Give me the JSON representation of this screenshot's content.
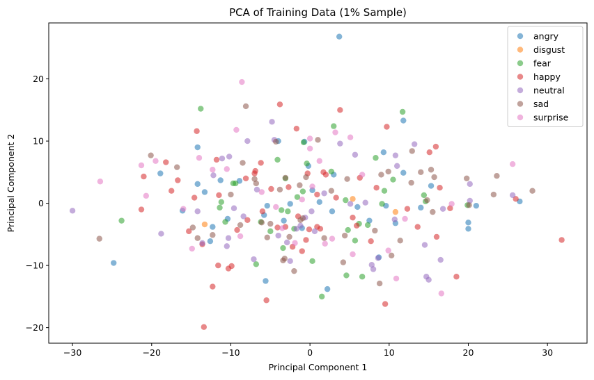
{
  "chart_data": {
    "type": "scatter",
    "title": "PCA of Training Data (1% Sample)",
    "xlabel": "Principal Component 1",
    "ylabel": "Principal Component 2",
    "xlim": [
      -33,
      35
    ],
    "ylim": [
      -22.5,
      29
    ],
    "xticks": [
      -30,
      -20,
      -10,
      0,
      10,
      20,
      30
    ],
    "yticks": [
      -20,
      -10,
      0,
      10,
      20
    ],
    "grid": false,
    "legend_position": "top-right",
    "series": [
      {
        "name": "angry",
        "color": "#1f77b4",
        "points": [
          [
            3.7,
            26.8
          ],
          [
            -14.2,
            9.0
          ],
          [
            -18.9,
            4.8
          ],
          [
            -14.2,
            3.1
          ],
          [
            -11.3,
            3.7
          ],
          [
            -13.3,
            1.8
          ],
          [
            -8.9,
            3.6
          ],
          [
            -10.4,
            -2.5
          ],
          [
            -12.6,
            -6.1
          ],
          [
            -5.4,
            -0.4
          ],
          [
            -2.5,
            -0.1
          ],
          [
            -3.3,
            -2.8
          ],
          [
            -5.6,
            -12.5
          ],
          [
            -4.0,
            10.0
          ],
          [
            -0.7,
            9.9
          ],
          [
            -0.2,
            6.0
          ],
          [
            1.2,
            0.2
          ],
          [
            2.2,
            -13.8
          ],
          [
            0.3,
            2.1
          ],
          [
            7.5,
            -2.8
          ],
          [
            9.3,
            8.2
          ],
          [
            11.8,
            13.3
          ],
          [
            11.8,
            4.9
          ],
          [
            14.0,
            -0.7
          ],
          [
            15.3,
            2.8
          ],
          [
            10.8,
            -3.2
          ],
          [
            8.7,
            -8.7
          ],
          [
            20.0,
            -4.1
          ],
          [
            20.0,
            -3.1
          ],
          [
            21.0,
            -0.4
          ],
          [
            26.5,
            0.3
          ],
          [
            -24.8,
            -9.6
          ],
          [
            -16.1,
            -1.2
          ],
          [
            -12.3,
            -3.8
          ],
          [
            -5.8,
            -1.9
          ],
          [
            2.8,
            -1.3
          ],
          [
            9.6,
            -0.4
          ],
          [
            -1.0,
            -4.0
          ],
          [
            3.0,
            4.6
          ],
          [
            6.0,
            -0.6
          ]
        ]
      },
      {
        "name": "disgust",
        "color": "#ff7f0e",
        "points": [
          [
            -13.3,
            -3.4
          ],
          [
            5.4,
            0.7
          ],
          [
            10.8,
            -1.4
          ]
        ]
      },
      {
        "name": "fear",
        "color": "#2ca02c",
        "points": [
          [
            -13.8,
            15.2
          ],
          [
            -23.8,
            -2.8
          ],
          [
            -11.4,
            -0.7
          ],
          [
            -9.7,
            3.2
          ],
          [
            -9.4,
            3.2
          ],
          [
            -11.2,
            0.2
          ],
          [
            -10.7,
            -3.0
          ],
          [
            -6.8,
            -9.8
          ],
          [
            -5.0,
            -4.5
          ],
          [
            -4.1,
            7.0
          ],
          [
            -3.1,
            4.0
          ],
          [
            -3.6,
            -1.1
          ],
          [
            -3.4,
            -7.2
          ],
          [
            -2.0,
            -4.1
          ],
          [
            -1.6,
            1.0
          ],
          [
            -0.9,
            1.9
          ],
          [
            -0.4,
            6.4
          ],
          [
            0.3,
            -9.3
          ],
          [
            1.5,
            -15.0
          ],
          [
            2.7,
            5.1
          ],
          [
            3.0,
            12.4
          ],
          [
            4.6,
            -11.6
          ],
          [
            4.8,
            -4.3
          ],
          [
            5.7,
            -6.0
          ],
          [
            6.2,
            -3.3
          ],
          [
            6.6,
            -11.8
          ],
          [
            8.3,
            7.3
          ],
          [
            9.4,
            2.0
          ],
          [
            10.5,
            3.8
          ],
          [
            11.7,
            14.7
          ],
          [
            14.4,
            1.3
          ],
          [
            14.6,
            0.3
          ],
          [
            19.9,
            -0.3
          ],
          [
            4.5,
            0.5
          ],
          [
            -6.2,
            -3.0
          ],
          [
            7.3,
            -3.5
          ],
          [
            9.1,
            -0.1
          ],
          [
            -0.8,
            9.8
          ],
          [
            -2.8,
            -1.3
          ]
        ]
      },
      {
        "name": "happy",
        "color": "#d62728",
        "points": [
          [
            -3.8,
            15.9
          ],
          [
            -14.3,
            11.6
          ],
          [
            -21.0,
            4.3
          ],
          [
            -21.3,
            -1.0
          ],
          [
            -18.2,
            6.6
          ],
          [
            -16.7,
            3.7
          ],
          [
            -15.3,
            -4.5
          ],
          [
            -14.6,
            0.9
          ],
          [
            -13.6,
            -6.6
          ],
          [
            -11.8,
            7.0
          ],
          [
            -12.3,
            -13.4
          ],
          [
            -11.6,
            -10.0
          ],
          [
            -13.4,
            -19.9
          ],
          [
            -9.9,
            -10.1
          ],
          [
            -10.3,
            -10.5
          ],
          [
            -9.2,
            -4.3
          ],
          [
            -7.9,
            -2.7
          ],
          [
            -7.0,
            4.8
          ],
          [
            -6.2,
            6.5
          ],
          [
            -6.9,
            5.2
          ],
          [
            -5.5,
            -15.6
          ],
          [
            -4.1,
            -3.9
          ],
          [
            -3.1,
            -3.8
          ],
          [
            -2.2,
            -7.0
          ],
          [
            -1.7,
            12.0
          ],
          [
            -1.5,
            -2.1
          ],
          [
            -1.0,
            -7.7
          ],
          [
            -0.3,
            4.8
          ],
          [
            -0.5,
            -5.9
          ],
          [
            1.3,
            -4.1
          ],
          [
            2.0,
            4.6
          ],
          [
            3.8,
            15.0
          ],
          [
            5.4,
            -2.3
          ],
          [
            5.9,
            -3.6
          ],
          [
            6.3,
            4.1
          ],
          [
            7.7,
            -6.1
          ],
          [
            9.7,
            12.3
          ],
          [
            9.5,
            -16.2
          ],
          [
            13.6,
            -3.8
          ],
          [
            15.1,
            8.2
          ],
          [
            15.9,
            9.1
          ],
          [
            16.0,
            -5.4
          ],
          [
            17.7,
            -0.8
          ],
          [
            18.5,
            -11.8
          ],
          [
            26.0,
            0.7
          ],
          [
            31.8,
            -5.9
          ],
          [
            -17.5,
            2.0
          ],
          [
            -8.1,
            4.0
          ],
          [
            0.9,
            1.4
          ],
          [
            3.3,
            0.9
          ],
          [
            8.4,
            2.5
          ],
          [
            1.7,
            5.0
          ],
          [
            -2.7,
            2.6
          ],
          [
            -11.5,
            1.3
          ],
          [
            16.4,
            2.5
          ],
          [
            -6.0,
            -1.3
          ],
          [
            -4.9,
            2.3
          ],
          [
            0.9,
            -3.8
          ],
          [
            -0.1,
            -4.2
          ],
          [
            12.3,
            -0.9
          ]
        ]
      },
      {
        "name": "neutral",
        "color": "#9467bd",
        "points": [
          [
            -30.0,
            -1.2
          ],
          [
            -18.8,
            -4.9
          ],
          [
            -14.2,
            -1.3
          ],
          [
            -13.6,
            -6.4
          ],
          [
            -12.2,
            4.5
          ],
          [
            -11.1,
            7.2
          ],
          [
            -10.2,
            7.5
          ],
          [
            -10.3,
            -5.6
          ],
          [
            -10.5,
            -6.9
          ],
          [
            -9.6,
            -0.8
          ],
          [
            -7.9,
            10.0
          ],
          [
            -7.1,
            -9.0
          ],
          [
            -6.7,
            2.2
          ],
          [
            -4.8,
            13.1
          ],
          [
            -4.5,
            10.2
          ],
          [
            -4.0,
            -5.2
          ],
          [
            -2.9,
            -6.3
          ],
          [
            -2.5,
            -9.3
          ],
          [
            -1.7,
            -4.1
          ],
          [
            -1.2,
            -3.6
          ],
          [
            -0.6,
            -2.3
          ],
          [
            0.6,
            -4.5
          ],
          [
            1.8,
            1.6
          ],
          [
            3.8,
            9.6
          ],
          [
            5.7,
            7.8
          ],
          [
            7.0,
            0.1
          ],
          [
            7.8,
            -9.9
          ],
          [
            8.0,
            -10.6
          ],
          [
            8.6,
            -8.8
          ],
          [
            10.7,
            -2.6
          ],
          [
            10.8,
            7.7
          ],
          [
            11.0,
            6.0
          ],
          [
            13.2,
            9.5
          ],
          [
            14.5,
            -6.7
          ],
          [
            14.7,
            -11.8
          ],
          [
            15.0,
            -12.3
          ],
          [
            16.5,
            -9.1
          ],
          [
            16.8,
            -0.9
          ],
          [
            20.2,
            3.1
          ],
          [
            20.2,
            0.4
          ],
          [
            25.6,
            1.3
          ],
          [
            0.2,
            -1.3
          ],
          [
            5.1,
            -0.1
          ],
          [
            -8.4,
            -2.1
          ]
        ]
      },
      {
        "name": "sad",
        "color": "#8c564b",
        "points": [
          [
            -8.1,
            15.6
          ],
          [
            -20.1,
            7.7
          ],
          [
            -26.6,
            -5.7
          ],
          [
            -16.8,
            5.8
          ],
          [
            -14.8,
            -3.9
          ],
          [
            -14.2,
            -5.6
          ],
          [
            -12.3,
            -5.1
          ],
          [
            -10.0,
            1.4
          ],
          [
            -8.8,
            -3.5
          ],
          [
            -8.5,
            6.5
          ],
          [
            -7.0,
            3.9
          ],
          [
            -6.8,
            3.2
          ],
          [
            -5.4,
            -5.5
          ],
          [
            -5.0,
            -3.3
          ],
          [
            -4.3,
            9.9
          ],
          [
            -3.8,
            2.2
          ],
          [
            -3.4,
            -9.2
          ],
          [
            -3.2,
            -8.9
          ],
          [
            -3.1,
            4.1
          ],
          [
            -2.6,
            -5.4
          ],
          [
            -2.0,
            -10.9
          ],
          [
            -1.3,
            2.9
          ],
          [
            -0.5,
            4.2
          ],
          [
            -0.9,
            -2.4
          ],
          [
            1.0,
            10.2
          ],
          [
            1.8,
            -5.6
          ],
          [
            2.7,
            2.0
          ],
          [
            4.4,
            -5.2
          ],
          [
            4.7,
            3.9
          ],
          [
            4.2,
            -9.5
          ],
          [
            8.2,
            -4.4
          ],
          [
            8.8,
            -12.9
          ],
          [
            9.0,
            4.6
          ],
          [
            10.3,
            -8.4
          ],
          [
            11.4,
            -6.0
          ],
          [
            12.8,
            3.3
          ],
          [
            14.0,
            5.0
          ],
          [
            14.8,
            0.5
          ],
          [
            15.3,
            5.4
          ],
          [
            15.5,
            -1.4
          ],
          [
            15.7,
            4.2
          ],
          [
            19.8,
            4.0
          ],
          [
            20.1,
            -0.3
          ],
          [
            23.2,
            1.4
          ],
          [
            23.6,
            4.4
          ],
          [
            28.1,
            2.0
          ],
          [
            -1.2,
            -2.7
          ],
          [
            9.9,
            5.1
          ],
          [
            12.9,
            8.4
          ],
          [
            -6.1,
            -3.1
          ]
        ]
      },
      {
        "name": "surprise",
        "color": "#e377c2",
        "points": [
          [
            -8.6,
            19.5
          ],
          [
            -26.5,
            3.5
          ],
          [
            -21.3,
            6.1
          ],
          [
            -20.7,
            1.2
          ],
          [
            -19.5,
            6.8
          ],
          [
            -16.0,
            -0.9
          ],
          [
            -14.9,
            -7.3
          ],
          [
            -14.0,
            7.3
          ],
          [
            -12.3,
            5.4
          ],
          [
            -10.5,
            5.5
          ],
          [
            -9.3,
            11.8
          ],
          [
            -6.1,
            1.8
          ],
          [
            -4.3,
            -0.6
          ],
          [
            -3.5,
            -4.0
          ],
          [
            -1.9,
            -6.4
          ],
          [
            0.0,
            8.8
          ],
          [
            0.0,
            10.4
          ],
          [
            1.2,
            6.8
          ],
          [
            1.9,
            -6.5
          ],
          [
            2.8,
            -5.7
          ],
          [
            3.2,
            11.4
          ],
          [
            5.1,
            10.6
          ],
          [
            6.6,
            4.6
          ],
          [
            9.9,
            -7.6
          ],
          [
            10.9,
            -12.1
          ],
          [
            12.0,
            -2.5
          ],
          [
            16.6,
            -14.5
          ],
          [
            17.9,
            -0.1
          ],
          [
            25.6,
            6.3
          ],
          [
            0.3,
            2.7
          ],
          [
            -1.0,
            0.6
          ],
          [
            -8.8,
            -5.3
          ],
          [
            5.4,
            -8.2
          ]
        ]
      }
    ]
  }
}
